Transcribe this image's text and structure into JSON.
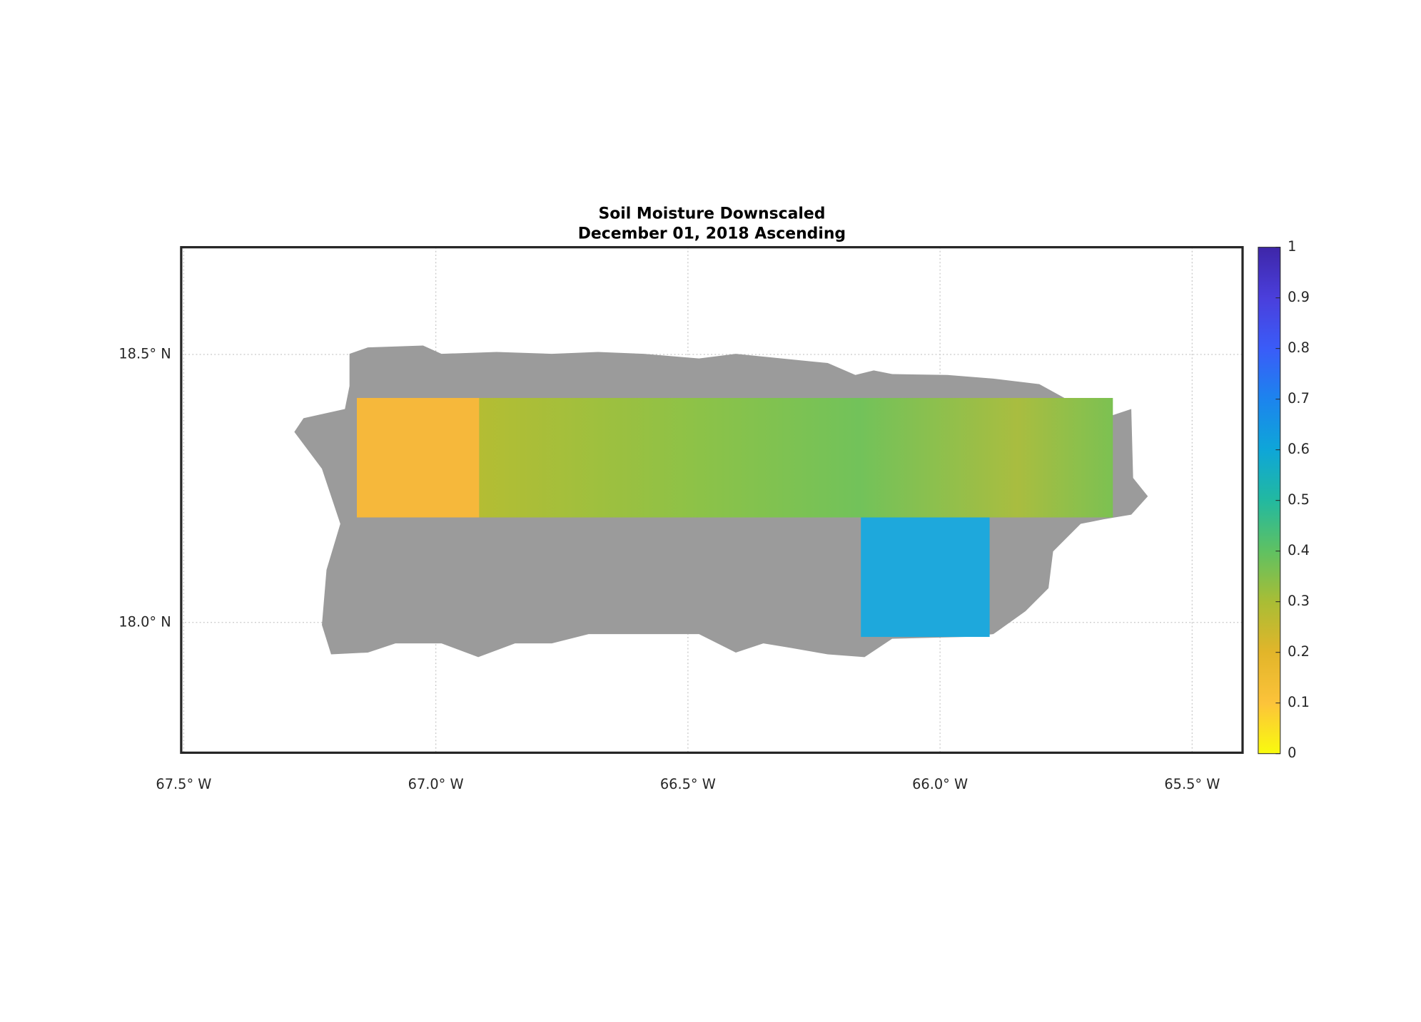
{
  "map": {
    "title": "Soil Moisture Downscaled",
    "subtitle": "December 01, 2018 Ascending",
    "xlim": [
      -67.505,
      -65.4
    ],
    "ylim": [
      17.757,
      18.7
    ],
    "xticks": [
      {
        "value": -67.5,
        "label": "67.5° W"
      },
      {
        "value": -67.0,
        "label": "67.0° W"
      },
      {
        "value": -66.5,
        "label": "66.5° W"
      },
      {
        "value": -66.0,
        "label": "66.0° W"
      },
      {
        "value": -65.5,
        "label": "65.5° W"
      }
    ],
    "yticks": [
      {
        "value": 18.0,
        "label": "18.0° N"
      },
      {
        "value": 18.5,
        "label": "18.5° N"
      }
    ],
    "grid": true,
    "no_data_color": "#9b9b9b",
    "colorbar": {
      "clim": [
        0,
        1
      ],
      "ticks": [
        0,
        0.1,
        0.2,
        0.3,
        0.4,
        0.5,
        0.6,
        0.7,
        0.8,
        0.9,
        1
      ],
      "colormap": [
        "#f9fb0e",
        "#fcc33a",
        "#e2b52a",
        "#a9bd35",
        "#5fc162",
        "#22b9a0",
        "#0ea6d8",
        "#1c84ee",
        "#3a5cf8",
        "#4a3fdc",
        "#3e26a8"
      ]
    }
  }
}
